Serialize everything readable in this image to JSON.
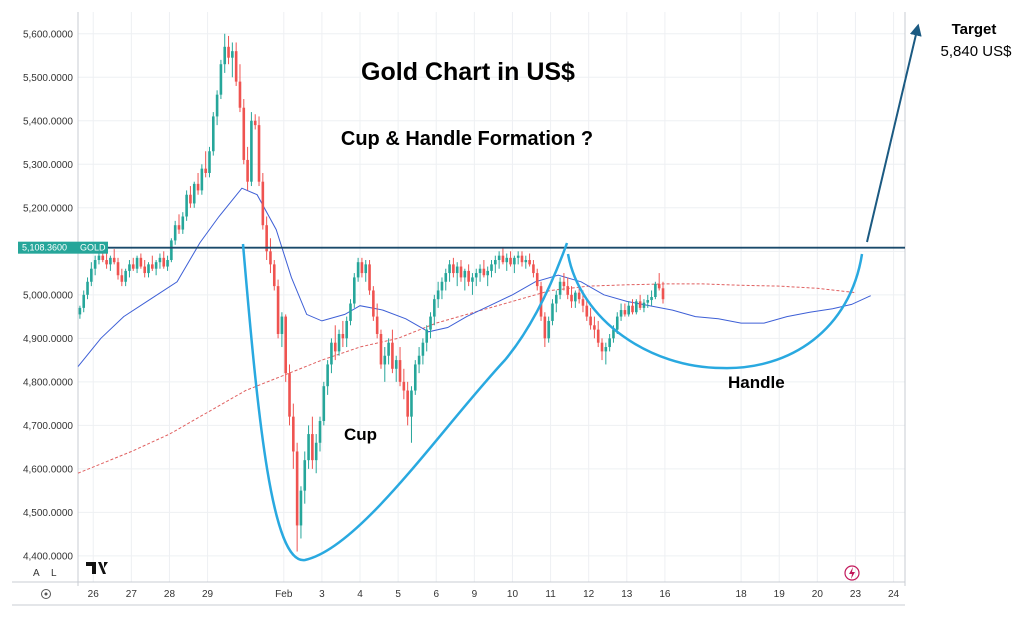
{
  "chart_data": {
    "type": "candlestick",
    "title": "Gold Chart in US$",
    "subtitle": "Cup & Handle Formation ?",
    "symbol": "GOLD",
    "last_price_label": "5,108.3600",
    "resistance_level": 5108.36,
    "y_ticks": [
      "5,600.0000",
      "5,500.0000",
      "5,400.0000",
      "5,300.0000",
      "5,200.0000",
      "5,100.0000",
      "5,000.0000",
      "4,900.0000",
      "4,800.0000",
      "4,700.0000",
      "4,600.0000",
      "4,500.0000",
      "4,400.0000"
    ],
    "y_tick_values": [
      5600,
      5500,
      5400,
      5300,
      5200,
      5100,
      5000,
      4900,
      4800,
      4700,
      4600,
      4500,
      4400
    ],
    "ylim": [
      4340,
      5650
    ],
    "x_ticks": [
      "26",
      "27",
      "28",
      "29",
      "Feb",
      "3",
      "4",
      "5",
      "6",
      "9",
      "10",
      "11",
      "12",
      "13",
      "16",
      "18",
      "19",
      "20",
      "23",
      "24"
    ],
    "x_tick_index": [
      0,
      1,
      2,
      3,
      5,
      6,
      7,
      8,
      9,
      10,
      11,
      12,
      13,
      14,
      15,
      17,
      18,
      19,
      20,
      21
    ],
    "x_index_range": [
      -0.4,
      21.3
    ],
    "annotations": {
      "cup": "Cup",
      "handle": "Handle",
      "target_label": "Target",
      "target_value": "5,840 US$"
    },
    "buttons": {
      "auto": "A",
      "log": "L",
      "settings": "⚙",
      "logo": "TV"
    },
    "colors": {
      "up": "#26a69a",
      "down": "#ef5350",
      "resistance": "#1a4a6b",
      "pattern": "#29a9e0",
      "ma_blue": "#3d5fd6",
      "ma_red": "#e06060",
      "arrow": "#1b5a82",
      "grid": "#eef0f3"
    },
    "ma_fast": [
      [
        -0.4,
        4835
      ],
      [
        0.2,
        4900
      ],
      [
        0.8,
        4950
      ],
      [
        1.5,
        4990
      ],
      [
        2.2,
        5030
      ],
      [
        2.8,
        5120
      ],
      [
        3.3,
        5180
      ],
      [
        3.9,
        5245
      ],
      [
        4.3,
        5230
      ],
      [
        4.8,
        5150
      ],
      [
        5.2,
        5040
      ],
      [
        5.6,
        4955
      ],
      [
        6.0,
        4940
      ],
      [
        6.6,
        4955
      ],
      [
        7.0,
        4975
      ],
      [
        7.6,
        4965
      ],
      [
        8.2,
        4945
      ],
      [
        8.8,
        4915
      ],
      [
        9.3,
        4925
      ],
      [
        9.8,
        4950
      ],
      [
        10.4,
        4975
      ],
      [
        11.0,
        5000
      ],
      [
        11.6,
        5030
      ],
      [
        12.2,
        5045
      ],
      [
        12.8,
        5030
      ],
      [
        13.4,
        5000
      ],
      [
        14.0,
        4985
      ],
      [
        14.6,
        4975
      ],
      [
        15.2,
        4965
      ],
      [
        15.8,
        4950
      ],
      [
        16.4,
        4945
      ],
      [
        17.0,
        4935
      ],
      [
        17.6,
        4935
      ],
      [
        18.2,
        4950
      ],
      [
        18.8,
        4960
      ],
      [
        19.4,
        4968
      ],
      [
        19.9,
        4978
      ],
      [
        20.4,
        4998
      ]
    ],
    "ma_slow": [
      [
        -0.4,
        4590
      ],
      [
        1.0,
        4640
      ],
      [
        2.0,
        4680
      ],
      [
        3.0,
        4730
      ],
      [
        4.0,
        4780
      ],
      [
        5.0,
        4815
      ],
      [
        6.0,
        4850
      ],
      [
        7.0,
        4880
      ],
      [
        8.0,
        4900
      ],
      [
        9.0,
        4935
      ],
      [
        10.0,
        4960
      ],
      [
        11.0,
        4985
      ],
      [
        12.0,
        5010
      ],
      [
        13.0,
        5020
      ],
      [
        14.0,
        5023
      ],
      [
        15.0,
        5025
      ],
      [
        16.0,
        5025
      ],
      [
        17.0,
        5022
      ],
      [
        18.0,
        5020
      ],
      [
        19.0,
        5015
      ],
      [
        20.0,
        5005
      ]
    ],
    "candles": [
      [
        -0.35,
        4955,
        4975,
        4945,
        4970
      ],
      [
        -0.25,
        4970,
        5010,
        4960,
        5000
      ],
      [
        -0.15,
        5000,
        5040,
        4990,
        5030
      ],
      [
        -0.05,
        5030,
        5075,
        5020,
        5060
      ],
      [
        0.05,
        5060,
        5090,
        5045,
        5080
      ],
      [
        0.15,
        5080,
        5100,
        5070,
        5090
      ],
      [
        0.25,
        5090,
        5110,
        5075,
        5080
      ],
      [
        0.35,
        5080,
        5095,
        5060,
        5070
      ],
      [
        0.45,
        5070,
        5090,
        5055,
        5085
      ],
      [
        0.55,
        5085,
        5105,
        5070,
        5075
      ],
      [
        0.65,
        5075,
        5085,
        5035,
        5045
      ],
      [
        0.75,
        5045,
        5060,
        5020,
        5030
      ],
      [
        0.85,
        5030,
        5060,
        5020,
        5055
      ],
      [
        0.95,
        5055,
        5080,
        5040,
        5070
      ],
      [
        1.05,
        5070,
        5085,
        5055,
        5060
      ],
      [
        1.15,
        5060,
        5090,
        5050,
        5085
      ],
      [
        1.25,
        5085,
        5095,
        5060,
        5065
      ],
      [
        1.35,
        5065,
        5080,
        5040,
        5050
      ],
      [
        1.45,
        5050,
        5075,
        5040,
        5070
      ],
      [
        1.55,
        5070,
        5090,
        5055,
        5060
      ],
      [
        1.65,
        5060,
        5080,
        5045,
        5075
      ],
      [
        1.75,
        5075,
        5095,
        5060,
        5085
      ],
      [
        1.85,
        5085,
        5100,
        5060,
        5065
      ],
      [
        1.95,
        5065,
        5090,
        5055,
        5080
      ],
      [
        2.05,
        5080,
        5130,
        5075,
        5125
      ],
      [
        2.15,
        5125,
        5170,
        5115,
        5160
      ],
      [
        2.25,
        5160,
        5185,
        5140,
        5150
      ],
      [
        2.35,
        5150,
        5190,
        5140,
        5180
      ],
      [
        2.45,
        5180,
        5240,
        5170,
        5230
      ],
      [
        2.55,
        5230,
        5250,
        5200,
        5210
      ],
      [
        2.65,
        5210,
        5260,
        5200,
        5255
      ],
      [
        2.75,
        5255,
        5280,
        5230,
        5240
      ],
      [
        2.85,
        5240,
        5300,
        5230,
        5290
      ],
      [
        2.95,
        5290,
        5330,
        5270,
        5280
      ],
      [
        3.05,
        5280,
        5340,
        5270,
        5330
      ],
      [
        3.15,
        5330,
        5420,
        5320,
        5410
      ],
      [
        3.25,
        5410,
        5470,
        5390,
        5460
      ],
      [
        3.35,
        5460,
        5540,
        5450,
        5530
      ],
      [
        3.45,
        5530,
        5600,
        5510,
        5570
      ],
      [
        3.55,
        5570,
        5595,
        5530,
        5545
      ],
      [
        3.65,
        5545,
        5580,
        5500,
        5560
      ],
      [
        3.75,
        5560,
        5580,
        5480,
        5490
      ],
      [
        3.85,
        5490,
        5530,
        5420,
        5430
      ],
      [
        3.95,
        5430,
        5450,
        5300,
        5310
      ],
      [
        4.05,
        5310,
        5340,
        5240,
        5260
      ],
      [
        4.15,
        5260,
        5420,
        5250,
        5400
      ],
      [
        4.25,
        5400,
        5415,
        5380,
        5390
      ],
      [
        4.35,
        5390,
        5410,
        5250,
        5260
      ],
      [
        4.45,
        5260,
        5280,
        5150,
        5160
      ],
      [
        4.55,
        5160,
        5180,
        5080,
        5100
      ],
      [
        4.65,
        5100,
        5130,
        5050,
        5070
      ],
      [
        4.75,
        5070,
        5080,
        5010,
        5020
      ],
      [
        4.85,
        5020,
        5035,
        4900,
        4910
      ],
      [
        4.95,
        4910,
        4960,
        4880,
        4950
      ],
      [
        5.05,
        4950,
        4955,
        4800,
        4820
      ],
      [
        5.15,
        4820,
        4840,
        4700,
        4720
      ],
      [
        5.25,
        4720,
        4750,
        4600,
        4640
      ],
      [
        5.35,
        4640,
        4660,
        4410,
        4470
      ],
      [
        5.45,
        4470,
        4560,
        4440,
        4550
      ],
      [
        5.55,
        4550,
        4640,
        4520,
        4620
      ],
      [
        5.65,
        4620,
        4700,
        4600,
        4680
      ],
      [
        5.75,
        4680,
        4720,
        4600,
        4620
      ],
      [
        5.85,
        4620,
        4680,
        4590,
        4660
      ],
      [
        5.95,
        4660,
        4720,
        4640,
        4710
      ],
      [
        6.05,
        4710,
        4800,
        4700,
        4790
      ],
      [
        6.15,
        4790,
        4850,
        4770,
        4840
      ],
      [
        6.25,
        4840,
        4900,
        4820,
        4890
      ],
      [
        6.35,
        4890,
        4930,
        4850,
        4870
      ],
      [
        6.45,
        4870,
        4920,
        4860,
        4910
      ],
      [
        6.55,
        4910,
        4940,
        4880,
        4900
      ],
      [
        6.65,
        4900,
        4950,
        4880,
        4940
      ],
      [
        6.75,
        4940,
        4990,
        4930,
        4980
      ],
      [
        6.85,
        4980,
        5050,
        4970,
        5040
      ],
      [
        6.95,
        5040,
        5085,
        5030,
        5075
      ],
      [
        7.05,
        5075,
        5085,
        5040,
        5050
      ],
      [
        7.15,
        5050,
        5080,
        5030,
        5070
      ],
      [
        7.25,
        5070,
        5080,
        5000,
        5010
      ],
      [
        7.35,
        5010,
        5020,
        4940,
        4950
      ],
      [
        7.45,
        4950,
        4980,
        4900,
        4910
      ],
      [
        7.55,
        4910,
        4920,
        4830,
        4840
      ],
      [
        7.65,
        4840,
        4880,
        4800,
        4860
      ],
      [
        7.75,
        4860,
        4900,
        4840,
        4890
      ],
      [
        7.85,
        4890,
        4920,
        4820,
        4830
      ],
      [
        7.95,
        4830,
        4860,
        4800,
        4850
      ],
      [
        8.05,
        4850,
        4880,
        4790,
        4800
      ],
      [
        8.15,
        4800,
        4830,
        4760,
        4780
      ],
      [
        8.25,
        4780,
        4800,
        4700,
        4720
      ],
      [
        8.35,
        4720,
        4790,
        4660,
        4780
      ],
      [
        8.45,
        4780,
        4850,
        4770,
        4840
      ],
      [
        8.55,
        4840,
        4880,
        4820,
        4860
      ],
      [
        8.65,
        4860,
        4900,
        4840,
        4890
      ],
      [
        8.75,
        4890,
        4930,
        4870,
        4920
      ],
      [
        8.85,
        4920,
        4960,
        4900,
        4950
      ],
      [
        8.95,
        4950,
        5000,
        4930,
        4990
      ],
      [
        9.05,
        4990,
        5030,
        4970,
        5010
      ],
      [
        9.15,
        5010,
        5040,
        4990,
        5030
      ],
      [
        9.25,
        5030,
        5060,
        5010,
        5050
      ],
      [
        9.35,
        5050,
        5080,
        5030,
        5070
      ],
      [
        9.45,
        5070,
        5085,
        5040,
        5050
      ],
      [
        9.55,
        5050,
        5075,
        5020,
        5065
      ],
      [
        9.65,
        5065,
        5080,
        5030,
        5040
      ],
      [
        9.75,
        5040,
        5060,
        5010,
        5055
      ],
      [
        9.85,
        5055,
        5070,
        5020,
        5030
      ],
      [
        9.95,
        5030,
        5050,
        5000,
        5040
      ],
      [
        10.05,
        5040,
        5060,
        5020,
        5050
      ],
      [
        10.15,
        5050,
        5070,
        5030,
        5060
      ],
      [
        10.25,
        5060,
        5080,
        5040,
        5045
      ],
      [
        10.35,
        5045,
        5065,
        5020,
        5055
      ],
      [
        10.45,
        5055,
        5080,
        5040,
        5070
      ],
      [
        10.55,
        5070,
        5090,
        5050,
        5080
      ],
      [
        10.65,
        5080,
        5100,
        5060,
        5090
      ],
      [
        10.75,
        5090,
        5110,
        5070,
        5075
      ],
      [
        10.85,
        5075,
        5095,
        5055,
        5085
      ],
      [
        10.95,
        5085,
        5100,
        5065,
        5070
      ],
      [
        11.05,
        5070,
        5090,
        5050,
        5085
      ],
      [
        11.15,
        5085,
        5100,
        5070,
        5090
      ],
      [
        11.25,
        5090,
        5100,
        5065,
        5075
      ],
      [
        11.35,
        5075,
        5090,
        5060,
        5080
      ],
      [
        11.45,
        5080,
        5095,
        5065,
        5070
      ],
      [
        11.55,
        5070,
        5080,
        5040,
        5050
      ],
      [
        11.65,
        5050,
        5060,
        5010,
        5020
      ],
      [
        11.75,
        5020,
        5030,
        4940,
        4950
      ],
      [
        11.85,
        4950,
        4960,
        4880,
        4900
      ],
      [
        11.95,
        4900,
        4950,
        4890,
        4940
      ],
      [
        12.05,
        4940,
        4990,
        4930,
        4980
      ],
      [
        12.15,
        4980,
        5010,
        4960,
        5000
      ],
      [
        12.25,
        5000,
        5040,
        4990,
        5030
      ],
      [
        12.35,
        5030,
        5050,
        5010,
        5020
      ],
      [
        12.45,
        5020,
        5040,
        4990,
        5000
      ],
      [
        12.55,
        5000,
        5020,
        4970,
        4985
      ],
      [
        12.65,
        4985,
        5010,
        4970,
        5005
      ],
      [
        12.75,
        5005,
        5020,
        4980,
        4990
      ],
      [
        12.85,
        4990,
        5010,
        4960,
        4975
      ],
      [
        12.95,
        4975,
        4990,
        4940,
        4950
      ],
      [
        13.05,
        4950,
        4970,
        4920,
        4930
      ],
      [
        13.15,
        4930,
        4950,
        4900,
        4920
      ],
      [
        13.25,
        4920,
        4940,
        4880,
        4890
      ],
      [
        13.35,
        4890,
        4900,
        4850,
        4870
      ],
      [
        13.45,
        4870,
        4890,
        4840,
        4880
      ],
      [
        13.55,
        4880,
        4910,
        4870,
        4900
      ],
      [
        13.65,
        4900,
        4930,
        4890,
        4920
      ],
      [
        13.75,
        4920,
        4960,
        4910,
        4950
      ],
      [
        13.85,
        4950,
        4980,
        4940,
        4965
      ],
      [
        13.95,
        4965,
        4980,
        4950,
        4955
      ],
      [
        14.05,
        4955,
        4985,
        4950,
        4975
      ],
      [
        14.15,
        4975,
        4990,
        4955,
        4960
      ],
      [
        14.25,
        4960,
        4990,
        4955,
        4985
      ],
      [
        14.35,
        4985,
        5000,
        4965,
        4970
      ],
      [
        14.45,
        4970,
        4990,
        4960,
        4982
      ],
      [
        14.55,
        4982,
        5000,
        4970,
        4988
      ],
      [
        14.65,
        4988,
        5010,
        4975,
        4995
      ],
      [
        14.75,
        4995,
        5030,
        4990,
        5025
      ],
      [
        14.85,
        5025,
        5050,
        5010,
        5015
      ],
      [
        14.95,
        5015,
        5030,
        4980,
        4990
      ]
    ]
  }
}
